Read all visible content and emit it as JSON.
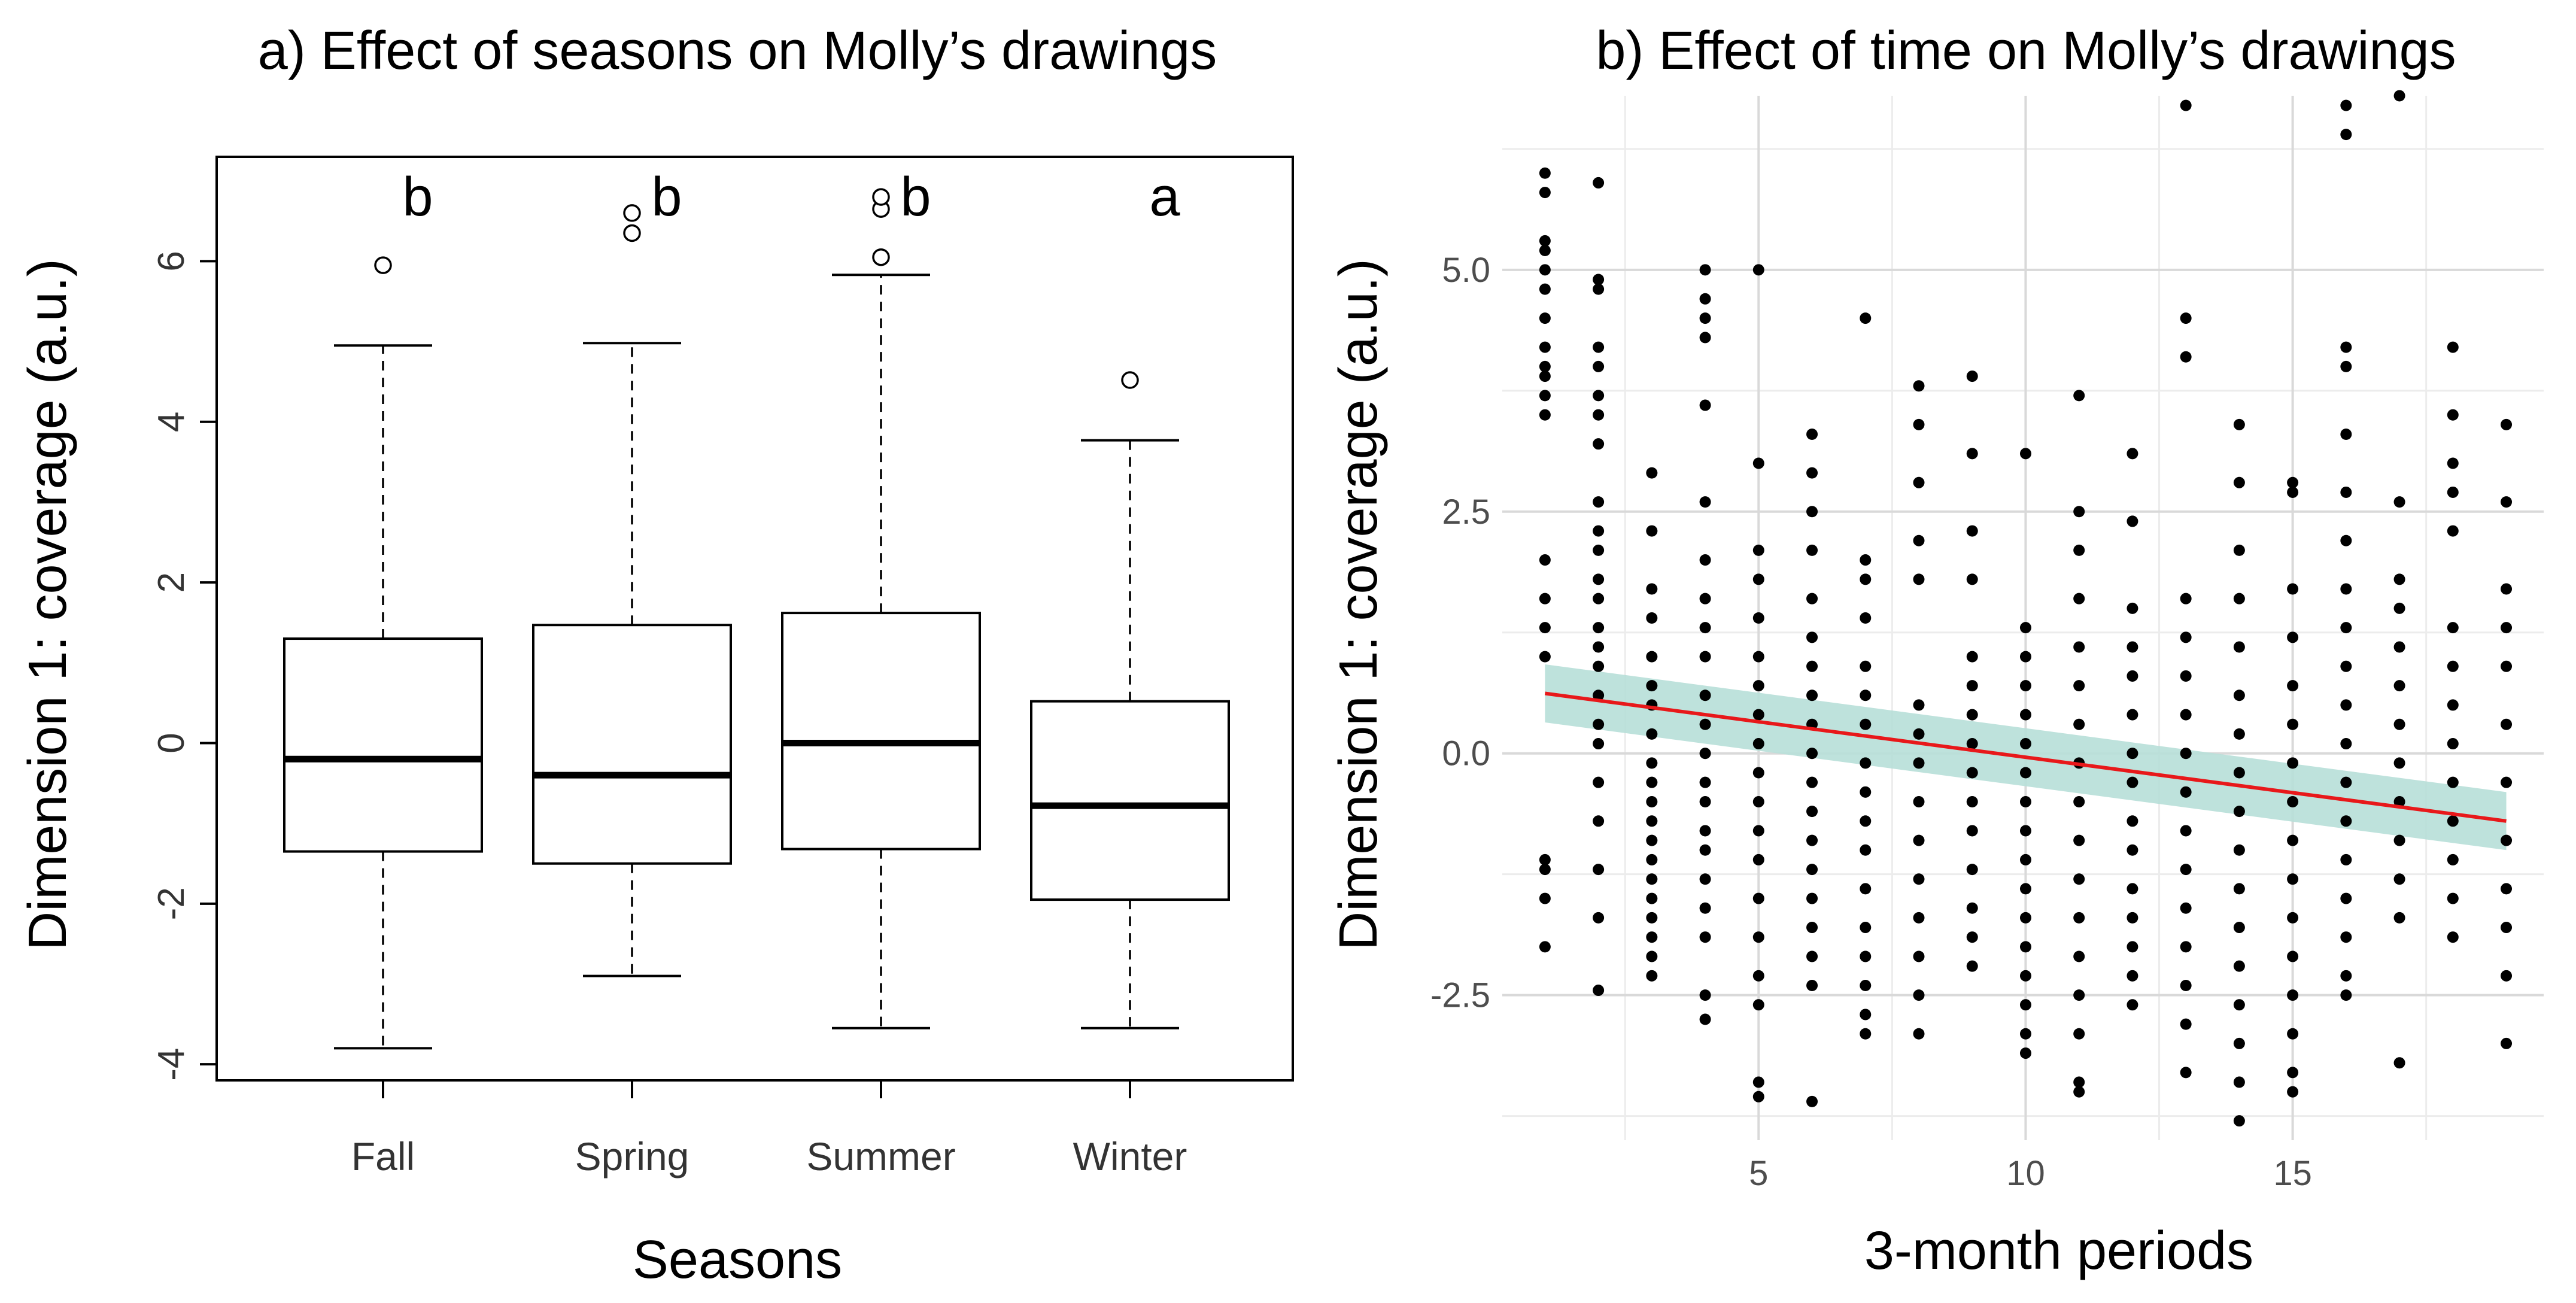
{
  "chart_data": [
    {
      "type": "box",
      "title": "a) Effect of seasons on Molly’s drawings",
      "xlabel": "Seasons",
      "ylabel": "Dimension 1: coverage (a.u.)",
      "ylim": [
        -4.2,
        7.3
      ],
      "y_ticks": [
        -4,
        -2,
        0,
        2,
        4,
        6
      ],
      "y_tick_labels": [
        "-4",
        "-2",
        "0",
        "2",
        "4",
        "6"
      ],
      "categories": [
        "Fall",
        "Spring",
        "Summer",
        "Winter"
      ],
      "boxes": [
        {
          "name": "Fall",
          "whisker_low": -3.8,
          "q1": -1.35,
          "median": -0.2,
          "q3": 1.3,
          "whisker_high": 4.95,
          "outliers": [
            5.95
          ],
          "letter": "b"
        },
        {
          "name": "Spring",
          "whisker_low": -2.9,
          "q1": -1.5,
          "median": -0.4,
          "q3": 1.47,
          "whisker_high": 4.98,
          "outliers": [
            6.35,
            6.6
          ],
          "letter": "b"
        },
        {
          "name": "Summer",
          "whisker_low": -3.55,
          "q1": -1.32,
          "median": 0.0,
          "q3": 1.62,
          "whisker_high": 5.83,
          "outliers": [
            6.05,
            6.65,
            6.8
          ],
          "letter": "b"
        },
        {
          "name": "Winter",
          "whisker_low": -3.55,
          "q1": -1.95,
          "median": -0.78,
          "q3": 0.52,
          "whisker_high": 3.77,
          "outliers": [
            4.52
          ],
          "letter": "a"
        }
      ]
    },
    {
      "type": "scatter",
      "title": "b) Effect of time on Molly’s drawings",
      "xlabel": "3-month periods",
      "ylabel": "Dimension 1: coverage (a.u.)",
      "xlim": [
        0.2,
        19.7
      ],
      "ylim": [
        -4.0,
        6.8
      ],
      "x_ticks": [
        5,
        10,
        15
      ],
      "x_tick_labels": [
        "5",
        "10",
        "15"
      ],
      "y_ticks": [
        -2.5,
        0.0,
        2.5,
        5.0
      ],
      "y_tick_labels": [
        "-2.5",
        "0.0",
        "2.5",
        "5.0"
      ],
      "trend": {
        "x": [
          1,
          19
        ],
        "y": [
          0.62,
          -0.7
        ],
        "ci_halfwidth": 0.3,
        "color": "#e8181a",
        "ci_color": "#b7dfd8"
      },
      "x_values_with_data": [
        1,
        2,
        3,
        4,
        5,
        6,
        7,
        8,
        9,
        10,
        11,
        12,
        13,
        14,
        15,
        16,
        17,
        18,
        19
      ],
      "y_by_period": [
        [
          6.0,
          5.8,
          5.3,
          5.2,
          5.0,
          4.8,
          4.5,
          4.2,
          4.0,
          3.9,
          3.7,
          3.5,
          2.0,
          1.6,
          1.3,
          1.0,
          -1.1,
          -1.2,
          -1.5,
          -2.0
        ],
        [
          5.9,
          4.9,
          4.8,
          4.2,
          4.0,
          3.7,
          3.5,
          3.2,
          2.6,
          2.3,
          2.1,
          1.8,
          1.6,
          1.3,
          1.1,
          0.9,
          0.6,
          0.3,
          0.1,
          -0.3,
          -0.7,
          -1.2,
          -1.7,
          -2.45
        ],
        [
          2.9,
          2.3,
          1.7,
          1.4,
          1.0,
          0.7,
          0.5,
          0.2,
          -0.1,
          -0.3,
          -0.5,
          -0.7,
          -0.9,
          -1.1,
          -1.3,
          -1.5,
          -1.7,
          -1.9,
          -2.1,
          -2.3
        ],
        [
          5.0,
          4.7,
          4.5,
          4.3,
          3.6,
          2.6,
          2.0,
          1.6,
          1.3,
          1.0,
          0.6,
          0.3,
          0.0,
          -0.3,
          -0.5,
          -0.8,
          -1.0,
          -1.3,
          -1.6,
          -1.9,
          -2.5,
          -2.75
        ],
        [
          5.0,
          3.0,
          2.1,
          1.8,
          1.4,
          1.0,
          0.7,
          0.4,
          0.1,
          -0.2,
          -0.5,
          -0.8,
          -1.1,
          -1.5,
          -1.9,
          -2.3,
          -2.6,
          -3.4,
          -3.55
        ],
        [
          3.3,
          2.9,
          2.5,
          2.1,
          1.6,
          1.2,
          0.9,
          0.6,
          0.3,
          0.0,
          -0.3,
          -0.6,
          -0.9,
          -1.2,
          -1.5,
          -1.8,
          -2.1,
          -2.4,
          -3.6
        ],
        [
          4.5,
          2.0,
          1.8,
          1.4,
          0.9,
          0.6,
          0.3,
          -0.1,
          -0.4,
          -0.7,
          -1.0,
          -1.4,
          -1.8,
          -2.1,
          -2.4,
          -2.7,
          -2.9
        ],
        [
          3.8,
          3.4,
          2.8,
          2.2,
          1.8,
          0.5,
          0.2,
          -0.1,
          -0.5,
          -0.9,
          -1.3,
          -1.7,
          -2.1,
          -2.5,
          -2.9
        ],
        [
          3.9,
          3.1,
          2.3,
          1.8,
          1.0,
          0.7,
          0.4,
          0.1,
          -0.2,
          -0.5,
          -0.8,
          -1.2,
          -1.6,
          -1.9,
          -2.2
        ],
        [
          3.1,
          1.3,
          1.0,
          0.7,
          0.4,
          0.1,
          -0.2,
          -0.5,
          -0.8,
          -1.1,
          -1.4,
          -1.7,
          -2.0,
          -2.3,
          -2.6,
          -2.9,
          -3.1
        ],
        [
          3.7,
          2.5,
          2.1,
          1.6,
          1.1,
          0.7,
          0.3,
          -0.1,
          -0.5,
          -0.9,
          -1.3,
          -1.7,
          -2.1,
          -2.5,
          -2.9,
          -3.4,
          -3.5
        ],
        [
          3.1,
          2.4,
          1.5,
          1.1,
          0.8,
          0.4,
          0.0,
          -0.3,
          -0.7,
          -1.0,
          -1.4,
          -1.7,
          -2.0,
          -2.3,
          -2.6
        ],
        [
          6.7,
          4.5,
          4.1,
          1.6,
          1.2,
          0.8,
          0.4,
          0.0,
          -0.4,
          -0.8,
          -1.2,
          -1.6,
          -2.0,
          -2.4,
          -2.8,
          -3.3
        ],
        [
          3.4,
          2.8,
          2.1,
          1.6,
          1.1,
          0.6,
          0.2,
          -0.2,
          -0.6,
          -1.0,
          -1.4,
          -1.8,
          -2.2,
          -2.6,
          -3.0,
          -3.4,
          -3.8
        ],
        [
          2.8,
          2.7,
          1.7,
          1.2,
          0.7,
          0.3,
          -0.1,
          -0.5,
          -0.9,
          -1.3,
          -1.7,
          -2.1,
          -2.5,
          -2.9,
          -3.3,
          -3.5
        ],
        [
          6.7,
          6.4,
          4.2,
          4.0,
          3.3,
          2.7,
          2.2,
          1.7,
          1.3,
          0.9,
          0.5,
          0.1,
          -0.3,
          -0.7,
          -1.1,
          -1.5,
          -1.9,
          -2.3,
          -2.5
        ],
        [
          6.8,
          2.6,
          1.8,
          1.5,
          1.1,
          0.7,
          0.3,
          -0.1,
          -0.5,
          -0.9,
          -1.3,
          -1.7,
          -3.2
        ],
        [
          4.2,
          3.5,
          3.0,
          2.7,
          2.3,
          1.3,
          0.9,
          0.5,
          0.1,
          -0.3,
          -0.7,
          -1.1,
          -1.5,
          -1.9
        ],
        [
          3.4,
          2.6,
          1.7,
          1.3,
          0.9,
          0.3,
          -0.3,
          -0.9,
          -1.4,
          -1.8,
          -2.3,
          -3.0
        ]
      ]
    }
  ]
}
